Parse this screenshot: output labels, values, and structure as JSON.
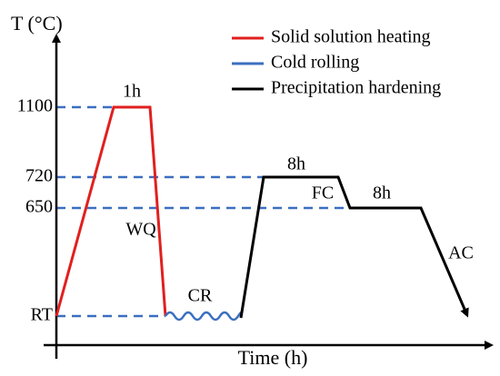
{
  "axes": {
    "y_label": "T (°C)",
    "x_label": "Time (h)",
    "y_ticks": [
      "1100",
      "720",
      "650",
      "RT"
    ]
  },
  "legend": [
    "Solid solution heating",
    "Cold rolling",
    "Precipitation hardening"
  ],
  "annotations": [
    "1h",
    "WQ",
    "CR",
    "8h",
    "FC",
    "8h",
    "AC"
  ]
}
